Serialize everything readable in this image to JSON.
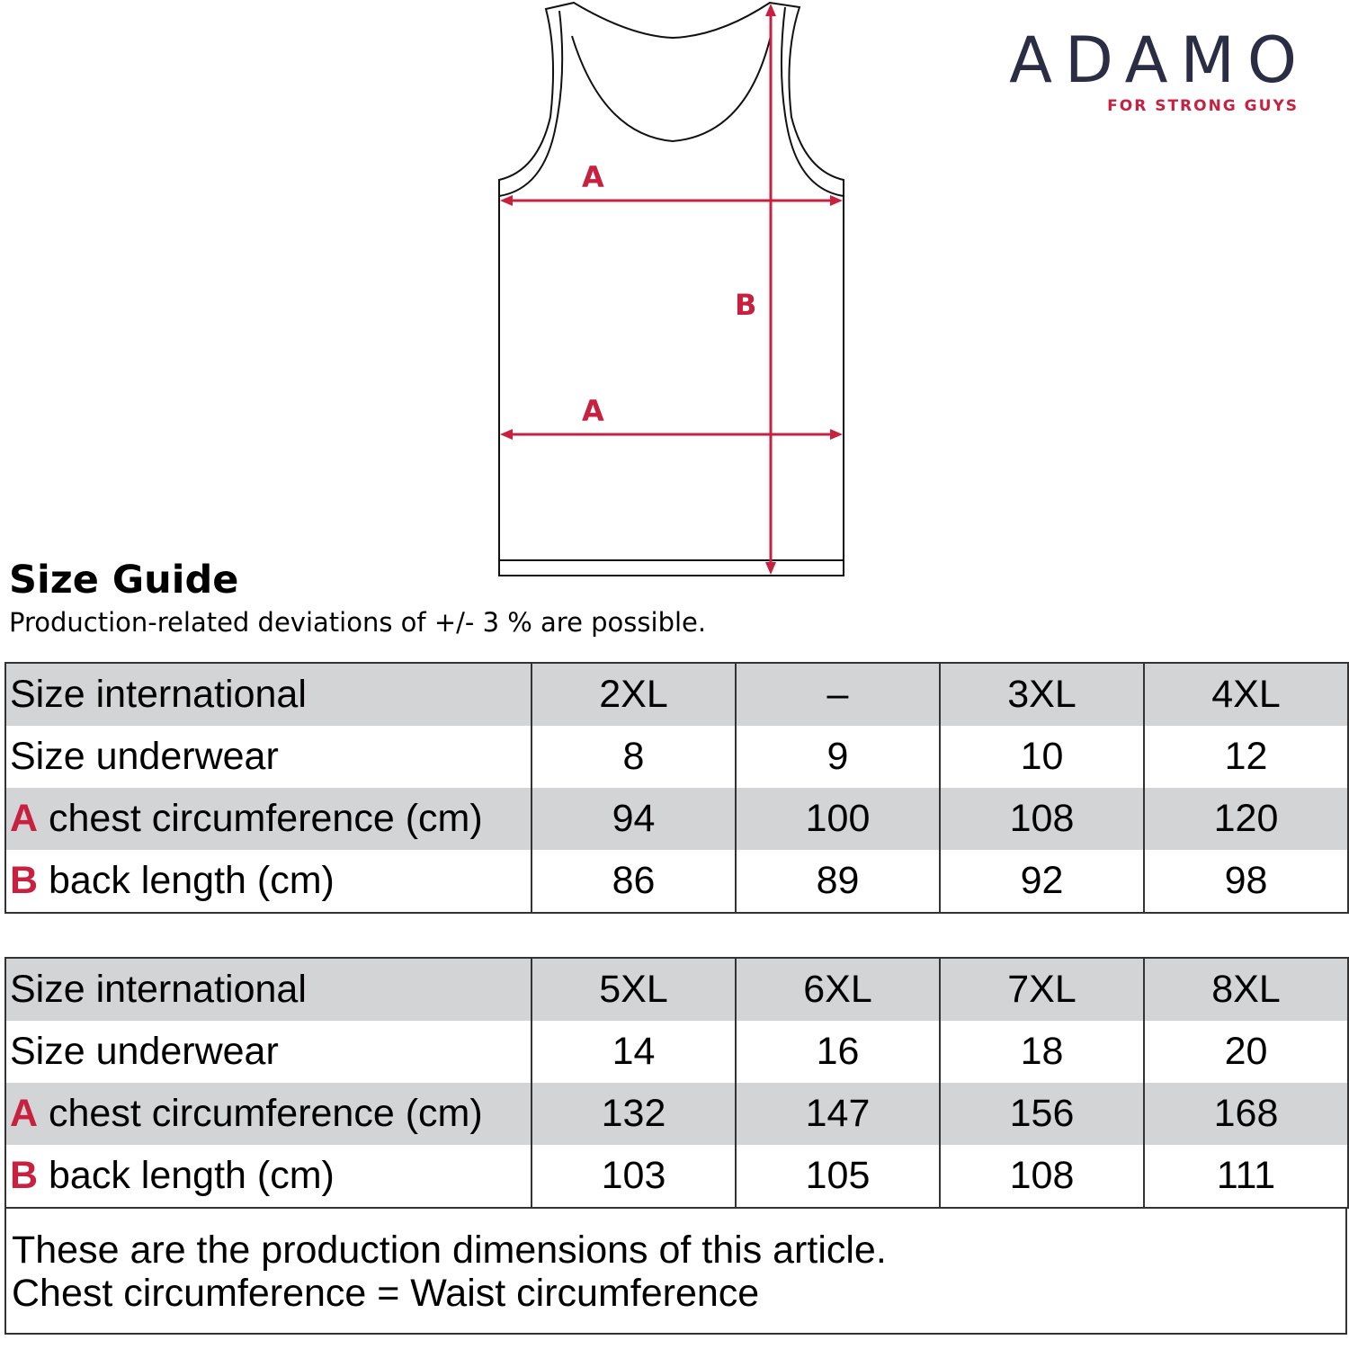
{
  "brand": {
    "name": "ADAMO",
    "tagline": "FOR STRONG GUYS",
    "navy": "#2b2d45",
    "red": "#c8203f"
  },
  "diagram": {
    "label_a": "A",
    "label_b": "B"
  },
  "title": "Size Guide",
  "subtitle": "Production-related deviations of +/- 3 % are possible.",
  "row_labels": {
    "size_international": "Size international",
    "size_underwear": "Size underwear",
    "chest_letter": "A",
    "chest": " chest circumference (cm)",
    "back_letter": "B",
    "back": " back length (cm)"
  },
  "tables": [
    {
      "size_international": [
        "2XL",
        "–",
        "3XL",
        "4XL"
      ],
      "size_underwear": [
        "8",
        "9",
        "10",
        "12"
      ],
      "chest": [
        "94",
        "100",
        "108",
        "120"
      ],
      "back": [
        "86",
        "89",
        "92",
        "98"
      ]
    },
    {
      "size_international": [
        "5XL",
        "6XL",
        "7XL",
        "8XL"
      ],
      "size_underwear": [
        "14",
        "16",
        "18",
        "20"
      ],
      "chest": [
        "132",
        "147",
        "156",
        "168"
      ],
      "back": [
        "103",
        "105",
        "108",
        "111"
      ]
    }
  ],
  "notes": [
    "These are the production dimensions of this article.",
    "Chest circumference = Waist circumference"
  ]
}
